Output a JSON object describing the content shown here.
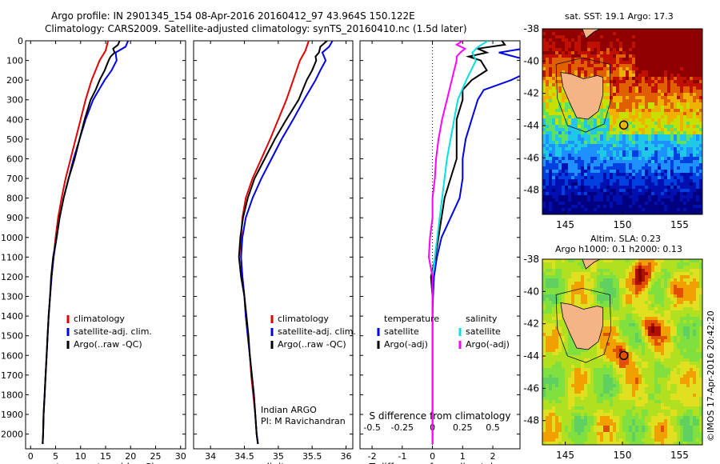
{
  "header": {
    "title_line1": "Argo profile: IN 2901345_154 08-Apr-2016 20160412_97 43.964S 150.122E",
    "title_line2": "Climatology: CARS2009. Satellite-adjusted climatology: synTS_20160410.nc (1.5d later)"
  },
  "credits": {
    "program": "Indian ARGO",
    "pi": "PI: M Ravichandran",
    "imos_stamp": "©IMOS 17-Apr-2016 20:42:20"
  },
  "colors": {
    "climatology": "#e00000",
    "satellite": "#0000e6",
    "argo": "#000000",
    "salinity_satellite": "#00e0e0",
    "salinity_argo": "#ff00ff"
  },
  "chart_data": [
    {
      "type": "line",
      "name": "temperature-profile",
      "xlabel": "temperature (deg C)",
      "ylabel": "",
      "xlim": [
        -1,
        31
      ],
      "ylim": [
        2075,
        0
      ],
      "x_ticks": [
        0,
        5,
        10,
        15,
        20,
        25,
        30
      ],
      "y_ticks": [
        0,
        100,
        200,
        300,
        400,
        500,
        600,
        700,
        800,
        900,
        1000,
        1100,
        1200,
        1300,
        1400,
        1500,
        1600,
        1700,
        1800,
        1900,
        2000
      ],
      "legend": [
        "climatology",
        "satellite-adj. clim.",
        "Argo(..raw -QC)"
      ],
      "series": [
        {
          "name": "climatology",
          "depth": [
            0,
            50,
            100,
            150,
            200,
            300,
            400,
            500,
            600,
            700,
            800,
            900,
            1000,
            1100,
            1200,
            1300,
            1400,
            1500,
            1600,
            1700,
            1800,
            1900,
            2000,
            2050
          ],
          "values": [
            15.5,
            15.0,
            13.8,
            13.0,
            12.2,
            11.0,
            10.0,
            9.0,
            8.0,
            7.0,
            6.2,
            5.5,
            5.0,
            4.6,
            4.2,
            3.9,
            3.6,
            3.4,
            3.2,
            3.0,
            2.8,
            2.6,
            2.5,
            2.4
          ]
        },
        {
          "name": "satellite-adj. clim.",
          "depth": [
            0,
            30,
            60,
            100,
            150,
            200,
            300,
            400,
            500,
            600,
            700,
            800,
            900,
            1000,
            1100,
            1200,
            1300,
            1400,
            1500,
            1600,
            1700,
            1800,
            1900,
            2000,
            2050
          ],
          "values": [
            19.5,
            19.0,
            17.0,
            17.2,
            16.2,
            14.8,
            12.5,
            11.0,
            9.8,
            8.6,
            7.6,
            6.6,
            5.8,
            5.2,
            4.6,
            4.2,
            3.9,
            3.6,
            3.4,
            3.2,
            3.0,
            2.8,
            2.6,
            2.5,
            2.4
          ]
        },
        {
          "name": "Argo(..raw -QC)",
          "depth": [
            0,
            20,
            40,
            60,
            80,
            100,
            150,
            200,
            250,
            300,
            400,
            500,
            600,
            700,
            800,
            900,
            1000,
            1100,
            1200,
            1300,
            1400,
            1500,
            1600,
            1700,
            1800,
            1900,
            2000,
            2050
          ],
          "values": [
            17.8,
            17.5,
            16.5,
            16.8,
            16.0,
            15.6,
            14.8,
            13.8,
            13.0,
            12.0,
            10.8,
            9.8,
            8.8,
            7.6,
            6.6,
            5.8,
            5.2,
            4.5,
            4.1,
            3.9,
            3.6,
            3.4,
            3.2,
            3.0,
            2.8,
            2.6,
            2.5,
            2.4
          ]
        }
      ]
    },
    {
      "type": "line",
      "name": "salinity-profile",
      "xlabel": "salinity",
      "ylabel": "",
      "xlim": [
        33.75,
        36.1
      ],
      "ylim": [
        2075,
        0
      ],
      "x_ticks": [
        34,
        34.5,
        35,
        35.5,
        36
      ],
      "x_tick_labels": [
        "34",
        "34.5",
        "35",
        "35.5",
        "36"
      ],
      "legend": [
        "climatology",
        "satellite-adj. clim.",
        "Argo(..raw -QC)"
      ],
      "series": [
        {
          "name": "climatology",
          "depth": [
            0,
            50,
            100,
            200,
            300,
            400,
            500,
            600,
            700,
            800,
            900,
            1000,
            1100,
            1200,
            1300,
            1400,
            1500,
            1600,
            1700,
            1800,
            1900,
            2000,
            2050
          ],
          "values": [
            35.45,
            35.4,
            35.32,
            35.22,
            35.12,
            35.0,
            34.88,
            34.75,
            34.62,
            34.52,
            34.47,
            34.45,
            34.45,
            34.47,
            34.5,
            34.52,
            34.55,
            34.58,
            34.6,
            34.63,
            34.66,
            34.68,
            34.7
          ]
        },
        {
          "name": "satellite-adj. clim.",
          "depth": [
            0,
            30,
            60,
            100,
            150,
            200,
            300,
            400,
            500,
            600,
            700,
            800,
            900,
            1000,
            1100,
            1200,
            1300,
            1400,
            1500,
            1600,
            1700,
            1800,
            1900,
            2000,
            2050
          ],
          "values": [
            35.8,
            35.75,
            35.65,
            35.7,
            35.62,
            35.55,
            35.38,
            35.22,
            35.05,
            34.9,
            34.75,
            34.62,
            34.52,
            34.47,
            34.45,
            34.47,
            34.5,
            34.52,
            34.55,
            34.58,
            34.61,
            34.64,
            34.66,
            34.68,
            34.7
          ]
        },
        {
          "name": "Argo(..raw -QC)",
          "depth": [
            0,
            30,
            60,
            80,
            100,
            150,
            200,
            300,
            400,
            500,
            600,
            700,
            800,
            900,
            1000,
            1100,
            1200,
            1300,
            1400,
            1500,
            1600,
            1700,
            1800,
            1900,
            2000,
            2050
          ],
          "values": [
            35.72,
            35.62,
            35.6,
            35.55,
            35.56,
            35.5,
            35.42,
            35.3,
            35.12,
            34.95,
            34.8,
            34.65,
            34.55,
            34.48,
            34.44,
            34.42,
            34.45,
            34.5,
            34.53,
            34.56,
            34.58,
            34.61,
            34.64,
            34.66,
            34.68,
            34.7
          ]
        }
      ]
    },
    {
      "type": "line",
      "name": "difference-profile",
      "xlabel": "T difference from climatology",
      "x2label": "S difference from climatology",
      "ylabel": "",
      "xlim": [
        -2.4,
        2.9
      ],
      "ylim": [
        2075,
        0
      ],
      "x_ticks": [
        -2,
        -1,
        0,
        1,
        2
      ],
      "x2_ticks": [
        -0.5,
        -0.25,
        0,
        0.25,
        0.5
      ],
      "x2_tick_labels": [
        "-0.5",
        "-0.25",
        "0",
        "0.25",
        "0.5"
      ],
      "legend": [
        "temperature",
        "satellite",
        "Argo(-adj)",
        "salinity",
        "satellite",
        "Argo(-adj)"
      ],
      "series": [
        {
          "name": "satellite",
          "group": "temperature",
          "depth": [
            0,
            30,
            60,
            100,
            150,
            200,
            250,
            300,
            400,
            500,
            600,
            700,
            800,
            900,
            1000,
            1100,
            1200,
            1300,
            1400,
            1500,
            1600,
            1800,
            2000,
            2050
          ],
          "values": [
            4.0,
            3.4,
            2.2,
            3.2,
            3.3,
            2.6,
            1.7,
            1.5,
            1.3,
            1.1,
            1.0,
            1.0,
            0.9,
            0.6,
            0.3,
            0.15,
            0.05,
            0.02,
            0.0,
            0.0,
            0.0,
            0.0,
            0.0,
            0.0
          ]
        },
        {
          "name": "Argo(-adj)",
          "group": "temperature",
          "depth": [
            0,
            20,
            40,
            60,
            80,
            100,
            150,
            200,
            250,
            300,
            400,
            500,
            600,
            700,
            800,
            900,
            1000,
            1100,
            1200,
            1300,
            1400,
            1500,
            1600,
            1800,
            2000,
            2050
          ],
          "values": [
            2.3,
            2.4,
            1.5,
            1.8,
            1.2,
            1.6,
            1.8,
            1.3,
            1.0,
            1.0,
            0.8,
            0.8,
            0.8,
            0.6,
            0.4,
            0.3,
            0.2,
            0.1,
            -0.05,
            0.0,
            0.0,
            0.0,
            0.0,
            0.0,
            0.0,
            0.0
          ]
        },
        {
          "name": "satellite",
          "group": "salinity",
          "depth": [
            0,
            30,
            60,
            100,
            150,
            200,
            300,
            400,
            500,
            600,
            700,
            800,
            900,
            1000,
            1100,
            1200,
            1300,
            1400,
            1500,
            1600,
            1800,
            2000,
            2050
          ],
          "values": [
            0.46,
            0.38,
            0.33,
            0.36,
            0.32,
            0.28,
            0.21,
            0.18,
            0.15,
            0.12,
            0.1,
            0.08,
            0.06,
            0.04,
            0.02,
            0.0,
            0.0,
            0.0,
            0.0,
            0.0,
            0.0,
            0.0,
            0.0
          ]
        },
        {
          "name": "Argo(-adj)",
          "group": "salinity",
          "depth": [
            0,
            20,
            40,
            60,
            80,
            100,
            150,
            200,
            300,
            400,
            500,
            600,
            700,
            800,
            900,
            1000,
            1100,
            1200,
            1300,
            1400,
            1500,
            1600,
            1800,
            2000,
            2050
          ],
          "values": [
            0.25,
            0.2,
            0.27,
            0.23,
            0.2,
            0.2,
            0.18,
            0.16,
            0.12,
            0.08,
            0.05,
            0.03,
            0.02,
            0.0,
            0.0,
            -0.02,
            -0.03,
            0.0,
            0.0,
            0.0,
            0.0,
            0.0,
            0.0,
            0.0,
            0.0
          ]
        }
      ]
    },
    {
      "type": "heatmap",
      "name": "sst-map",
      "title": "sat. SST: 19.1 Argo: 17.3",
      "xlim": [
        143,
        157
      ],
      "ylim": [
        -49.5,
        -38
      ],
      "x_ticks": [
        145,
        150,
        155
      ],
      "y_ticks": [
        -38,
        -40,
        -42,
        -44,
        -46,
        -48
      ],
      "argo_position": [
        150.122,
        -43.964
      ]
    },
    {
      "type": "heatmap",
      "name": "sla-map",
      "title": "Altim. SLA: 0.23",
      "subtitle": "Argo h1000: 0.1 h2000: 0.13",
      "xlim": [
        143,
        157
      ],
      "ylim": [
        -49.5,
        -38
      ],
      "x_ticks": [
        145,
        150,
        155
      ],
      "y_ticks": [
        -38,
        -40,
        -42,
        -44,
        -46,
        -48
      ],
      "argo_position": [
        150.122,
        -43.964
      ]
    }
  ]
}
